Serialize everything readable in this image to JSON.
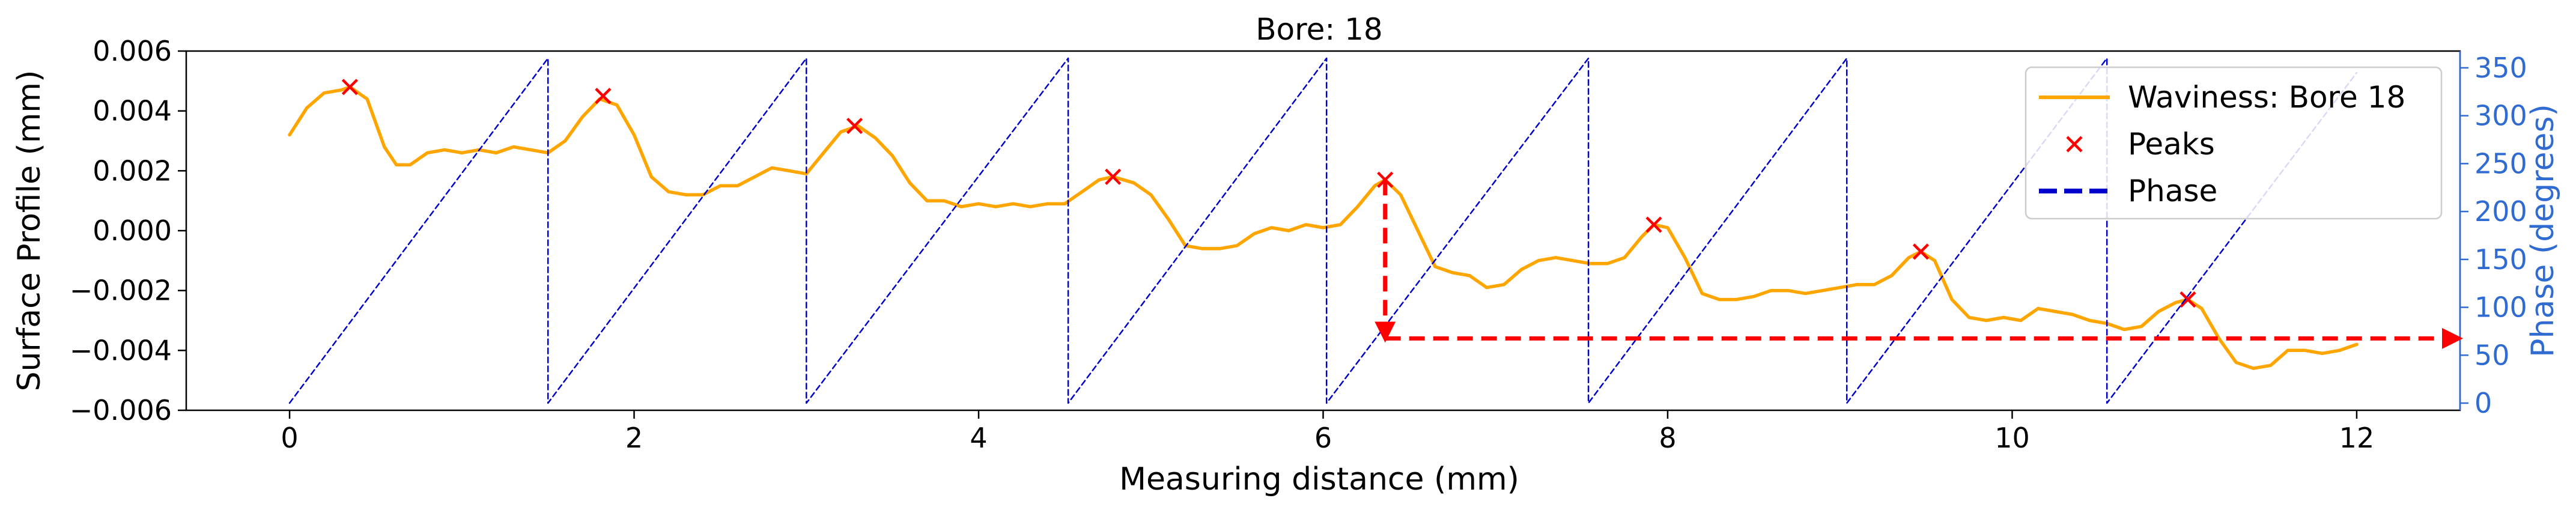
{
  "chart_data": {
    "type": "line",
    "title": "Bore: 18",
    "xlabel": "Measuring distance (mm)",
    "ylabel": "Surface Profile (mm)",
    "y2label": "Phase (degrees)",
    "xlim": [
      -0.6,
      12.6
    ],
    "ylim": [
      -0.006,
      0.006
    ],
    "y2lim": [
      -7.5,
      367.5
    ],
    "xticks": [
      "0",
      "2",
      "4",
      "6",
      "8",
      "10",
      "12"
    ],
    "xtick_values": [
      0,
      2,
      4,
      6,
      8,
      10,
      12
    ],
    "yticks": [
      "−0.006",
      "−0.004",
      "−0.002",
      "0.000",
      "0.002",
      "0.004",
      "0.006"
    ],
    "ytick_values": [
      -0.006,
      -0.004,
      -0.002,
      0.0,
      0.002,
      0.004,
      0.006
    ],
    "y2ticks": [
      "0",
      "50",
      "100",
      "150",
      "200",
      "250",
      "300",
      "350"
    ],
    "y2tick_values": [
      0,
      50,
      100,
      150,
      200,
      250,
      300,
      350
    ],
    "legend_position": "top-right",
    "legend": [
      {
        "label": "Waviness: Bore 18",
        "style": "line",
        "color": "#FFA500"
      },
      {
        "label": "Peaks",
        "style": "x",
        "color": "#FF0000"
      },
      {
        "label": "Phase",
        "style": "dashed",
        "color": "#0000CC"
      }
    ],
    "series": [
      {
        "name": "Waviness: Bore 18",
        "color": "#FFA500",
        "axis": "left",
        "x": [
          0.0,
          0.1,
          0.2,
          0.3,
          0.35,
          0.45,
          0.55,
          0.62,
          0.7,
          0.8,
          0.9,
          1.0,
          1.1,
          1.2,
          1.3,
          1.4,
          1.5,
          1.6,
          1.7,
          1.8,
          1.9,
          2.0,
          2.1,
          2.2,
          2.3,
          2.4,
          2.5,
          2.6,
          2.7,
          2.8,
          2.9,
          3.0,
          3.1,
          3.2,
          3.3,
          3.4,
          3.5,
          3.6,
          3.7,
          3.8,
          3.9,
          4.0,
          4.1,
          4.2,
          4.3,
          4.4,
          4.5,
          4.6,
          4.7,
          4.78,
          4.9,
          5.0,
          5.1,
          5.2,
          5.3,
          5.4,
          5.5,
          5.6,
          5.7,
          5.8,
          5.9,
          6.0,
          6.1,
          6.2,
          6.3,
          6.36,
          6.45,
          6.55,
          6.65,
          6.75,
          6.85,
          6.95,
          7.05,
          7.15,
          7.25,
          7.35,
          7.45,
          7.55,
          7.65,
          7.75,
          7.85,
          7.92,
          8.0,
          8.1,
          8.2,
          8.3,
          8.4,
          8.5,
          8.6,
          8.7,
          8.8,
          8.9,
          9.0,
          9.1,
          9.2,
          9.3,
          9.4,
          9.47,
          9.55,
          9.65,
          9.75,
          9.85,
          9.95,
          10.05,
          10.15,
          10.25,
          10.35,
          10.45,
          10.55,
          10.65,
          10.75,
          10.85,
          10.95,
          11.02,
          11.1,
          11.2,
          11.3,
          11.4,
          11.5,
          11.6,
          11.7,
          11.8,
          11.9,
          12.0
        ],
        "y": [
          0.0032,
          0.0041,
          0.0046,
          0.0047,
          0.0048,
          0.0044,
          0.0028,
          0.0022,
          0.0022,
          0.0026,
          0.0027,
          0.0026,
          0.0027,
          0.0026,
          0.0028,
          0.0027,
          0.0026,
          0.003,
          0.0038,
          0.0044,
          0.0042,
          0.0032,
          0.0018,
          0.0013,
          0.0012,
          0.0012,
          0.0015,
          0.0015,
          0.0018,
          0.0021,
          0.002,
          0.0019,
          0.0026,
          0.0033,
          0.0035,
          0.0031,
          0.0025,
          0.0016,
          0.001,
          0.001,
          0.0008,
          0.0009,
          0.0008,
          0.0009,
          0.0008,
          0.0009,
          0.0009,
          0.0013,
          0.0017,
          0.0018,
          0.0016,
          0.0012,
          0.0004,
          -0.0005,
          -0.0006,
          -0.0006,
          -0.0005,
          -0.0001,
          0.0001,
          0.0,
          0.0002,
          0.0001,
          0.0002,
          0.0008,
          0.0015,
          0.0017,
          0.0012,
          0.0,
          -0.0012,
          -0.0014,
          -0.0015,
          -0.0019,
          -0.0018,
          -0.0013,
          -0.001,
          -0.0009,
          -0.001,
          -0.0011,
          -0.0011,
          -0.0009,
          -0.0002,
          0.0002,
          0.0001,
          -0.0009,
          -0.0021,
          -0.0023,
          -0.0023,
          -0.0022,
          -0.002,
          -0.002,
          -0.0021,
          -0.002,
          -0.0019,
          -0.0018,
          -0.0018,
          -0.0015,
          -0.0009,
          -0.0007,
          -0.001,
          -0.0023,
          -0.0029,
          -0.003,
          -0.0029,
          -0.003,
          -0.0026,
          -0.0027,
          -0.0028,
          -0.003,
          -0.0031,
          -0.0033,
          -0.0032,
          -0.0027,
          -0.0024,
          -0.0023,
          -0.0026,
          -0.0036,
          -0.0044,
          -0.0046,
          -0.0045,
          -0.004,
          -0.004,
          -0.0041,
          -0.004,
          -0.0038
        ]
      },
      {
        "name": "Peaks",
        "color": "#FF0000",
        "axis": "left",
        "marker": "x",
        "x": [
          0.35,
          1.82,
          3.28,
          4.78,
          6.36,
          7.92,
          9.47,
          11.02
        ],
        "y": [
          0.0048,
          0.0045,
          0.0035,
          0.0018,
          0.0017,
          0.0002,
          -0.0007,
          -0.0023
        ]
      },
      {
        "name": "Phase",
        "color": "#0000CC",
        "axis": "right",
        "style": "dashed",
        "x": [
          0.0,
          1.5,
          1.5,
          3.0,
          3.0,
          4.52,
          4.52,
          6.02,
          6.02,
          7.54,
          7.54,
          9.04,
          9.04,
          10.55,
          10.55,
          12.0
        ],
        "y": [
          0,
          360,
          0,
          360,
          0,
          360,
          0,
          360,
          0,
          360,
          0,
          360,
          0,
          360,
          0,
          345
        ]
      }
    ],
    "annotations": [
      {
        "type": "arrow",
        "style": "dashed",
        "color": "#FF0000",
        "axis": "left",
        "from": [
          6.36,
          0.0017
        ],
        "to": [
          6.36,
          -0.0036
        ]
      },
      {
        "type": "arrow",
        "style": "dashed",
        "color": "#FF0000",
        "axis": "left",
        "from": [
          6.36,
          -0.0036
        ],
        "to": [
          12.6,
          -0.0036
        ]
      }
    ]
  }
}
